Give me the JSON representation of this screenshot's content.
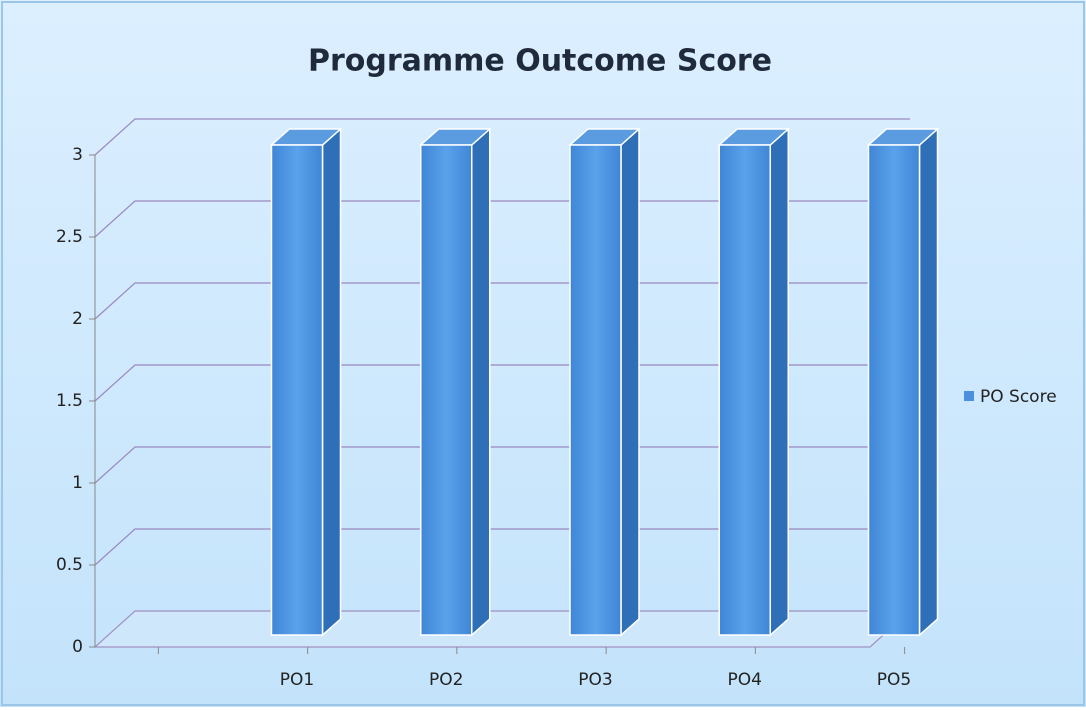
{
  "chart_data": {
    "type": "bar3d",
    "title": "Programme Outcome Score",
    "categories": [
      "PO1",
      "PO2",
      "PO3",
      "PO4",
      "PO5"
    ],
    "series": [
      {
        "name": "PO Score",
        "color": "#4a90dc",
        "values": [
          3,
          3,
          3,
          3,
          3
        ]
      }
    ],
    "ylim": [
      0,
      3
    ],
    "yticks": [
      0,
      0.5,
      1,
      1.5,
      2,
      2.5,
      3
    ],
    "grid": true,
    "legend": "right"
  }
}
